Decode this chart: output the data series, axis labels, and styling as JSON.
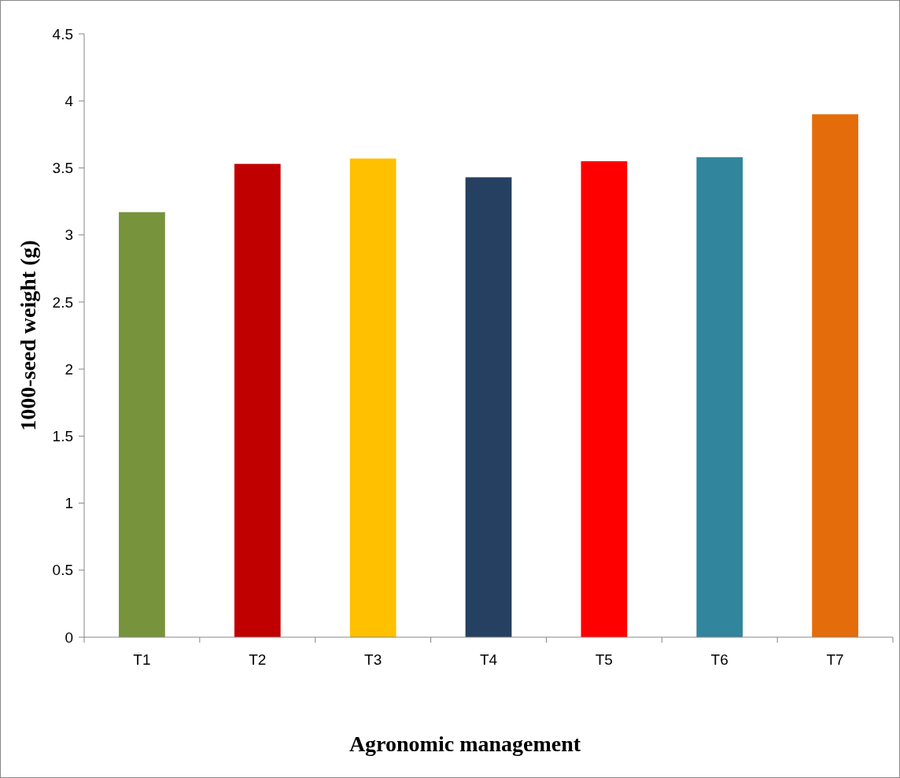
{
  "chart_data": {
    "type": "bar",
    "xlabel": "Agronomic management",
    "ylabel": "1000-seed weight (g)",
    "categories": [
      "T1",
      "T2",
      "T3",
      "T4",
      "T5",
      "T6",
      "T7"
    ],
    "values": [
      3.17,
      3.53,
      3.57,
      3.43,
      3.55,
      3.58,
      3.9
    ],
    "colors": [
      "#77933c",
      "#c00000",
      "#ffc000",
      "#254061",
      "#ff0000",
      "#31859c",
      "#e46c0a"
    ],
    "ylim": [
      0,
      4.5
    ],
    "yticks": [
      0,
      0.5,
      1,
      1.5,
      2,
      2.5,
      3,
      3.5,
      4,
      4.5
    ],
    "grid": false
  }
}
